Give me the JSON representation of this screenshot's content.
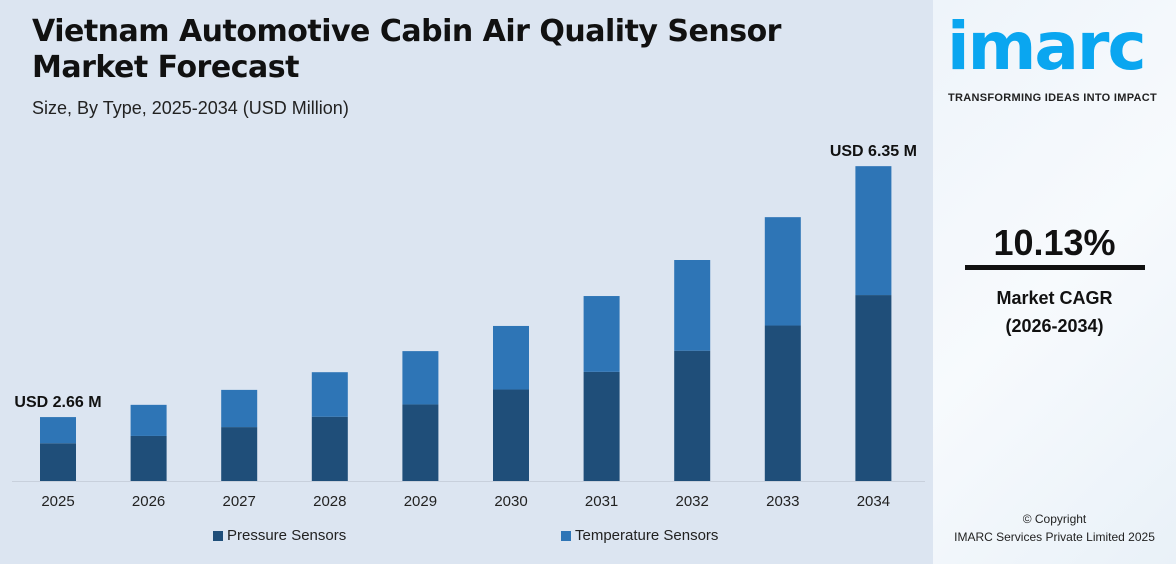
{
  "title_line1": "Vietnam Automotive Cabin Air Quality Sensor",
  "title_line2": "Market Forecast",
  "subtitle": "Size, By Type, 2025-2034 (USD Million)",
  "chart_data": {
    "type": "bar",
    "stacked": true,
    "categories": [
      "2025",
      "2026",
      "2027",
      "2028",
      "2029",
      "2030",
      "2031",
      "2032",
      "2033",
      "2034"
    ],
    "series": [
      {
        "name": "Pressure Sensors",
        "color": "#1f4e79",
        "values": [
          1.57,
          1.68,
          1.81,
          1.96,
          2.14,
          2.36,
          2.62,
          2.93,
          3.3,
          3.75
        ]
      },
      {
        "name": "Temperature Sensors",
        "color": "#2e75b6",
        "values": [
          1.09,
          1.16,
          1.25,
          1.36,
          1.49,
          1.64,
          1.82,
          2.04,
          2.3,
          2.6
        ]
      }
    ],
    "annotations": [
      {
        "category": "2025",
        "text": "USD 2.66 M"
      },
      {
        "category": "2034",
        "text": "USD 6.35 M"
      }
    ],
    "grid": false,
    "legend": "bottom"
  },
  "brand": {
    "logo": "imarc",
    "tagline": "TRANSFORMING IDEAS INTO IMPACT",
    "color": "#0aa6f0"
  },
  "cagr": {
    "value": "10.13%",
    "label1": "Market CAGR",
    "label2": "(2026-2034)"
  },
  "copyright": {
    "line1": "© Copyright",
    "line2": "IMARC Services Private Limited 2025"
  }
}
